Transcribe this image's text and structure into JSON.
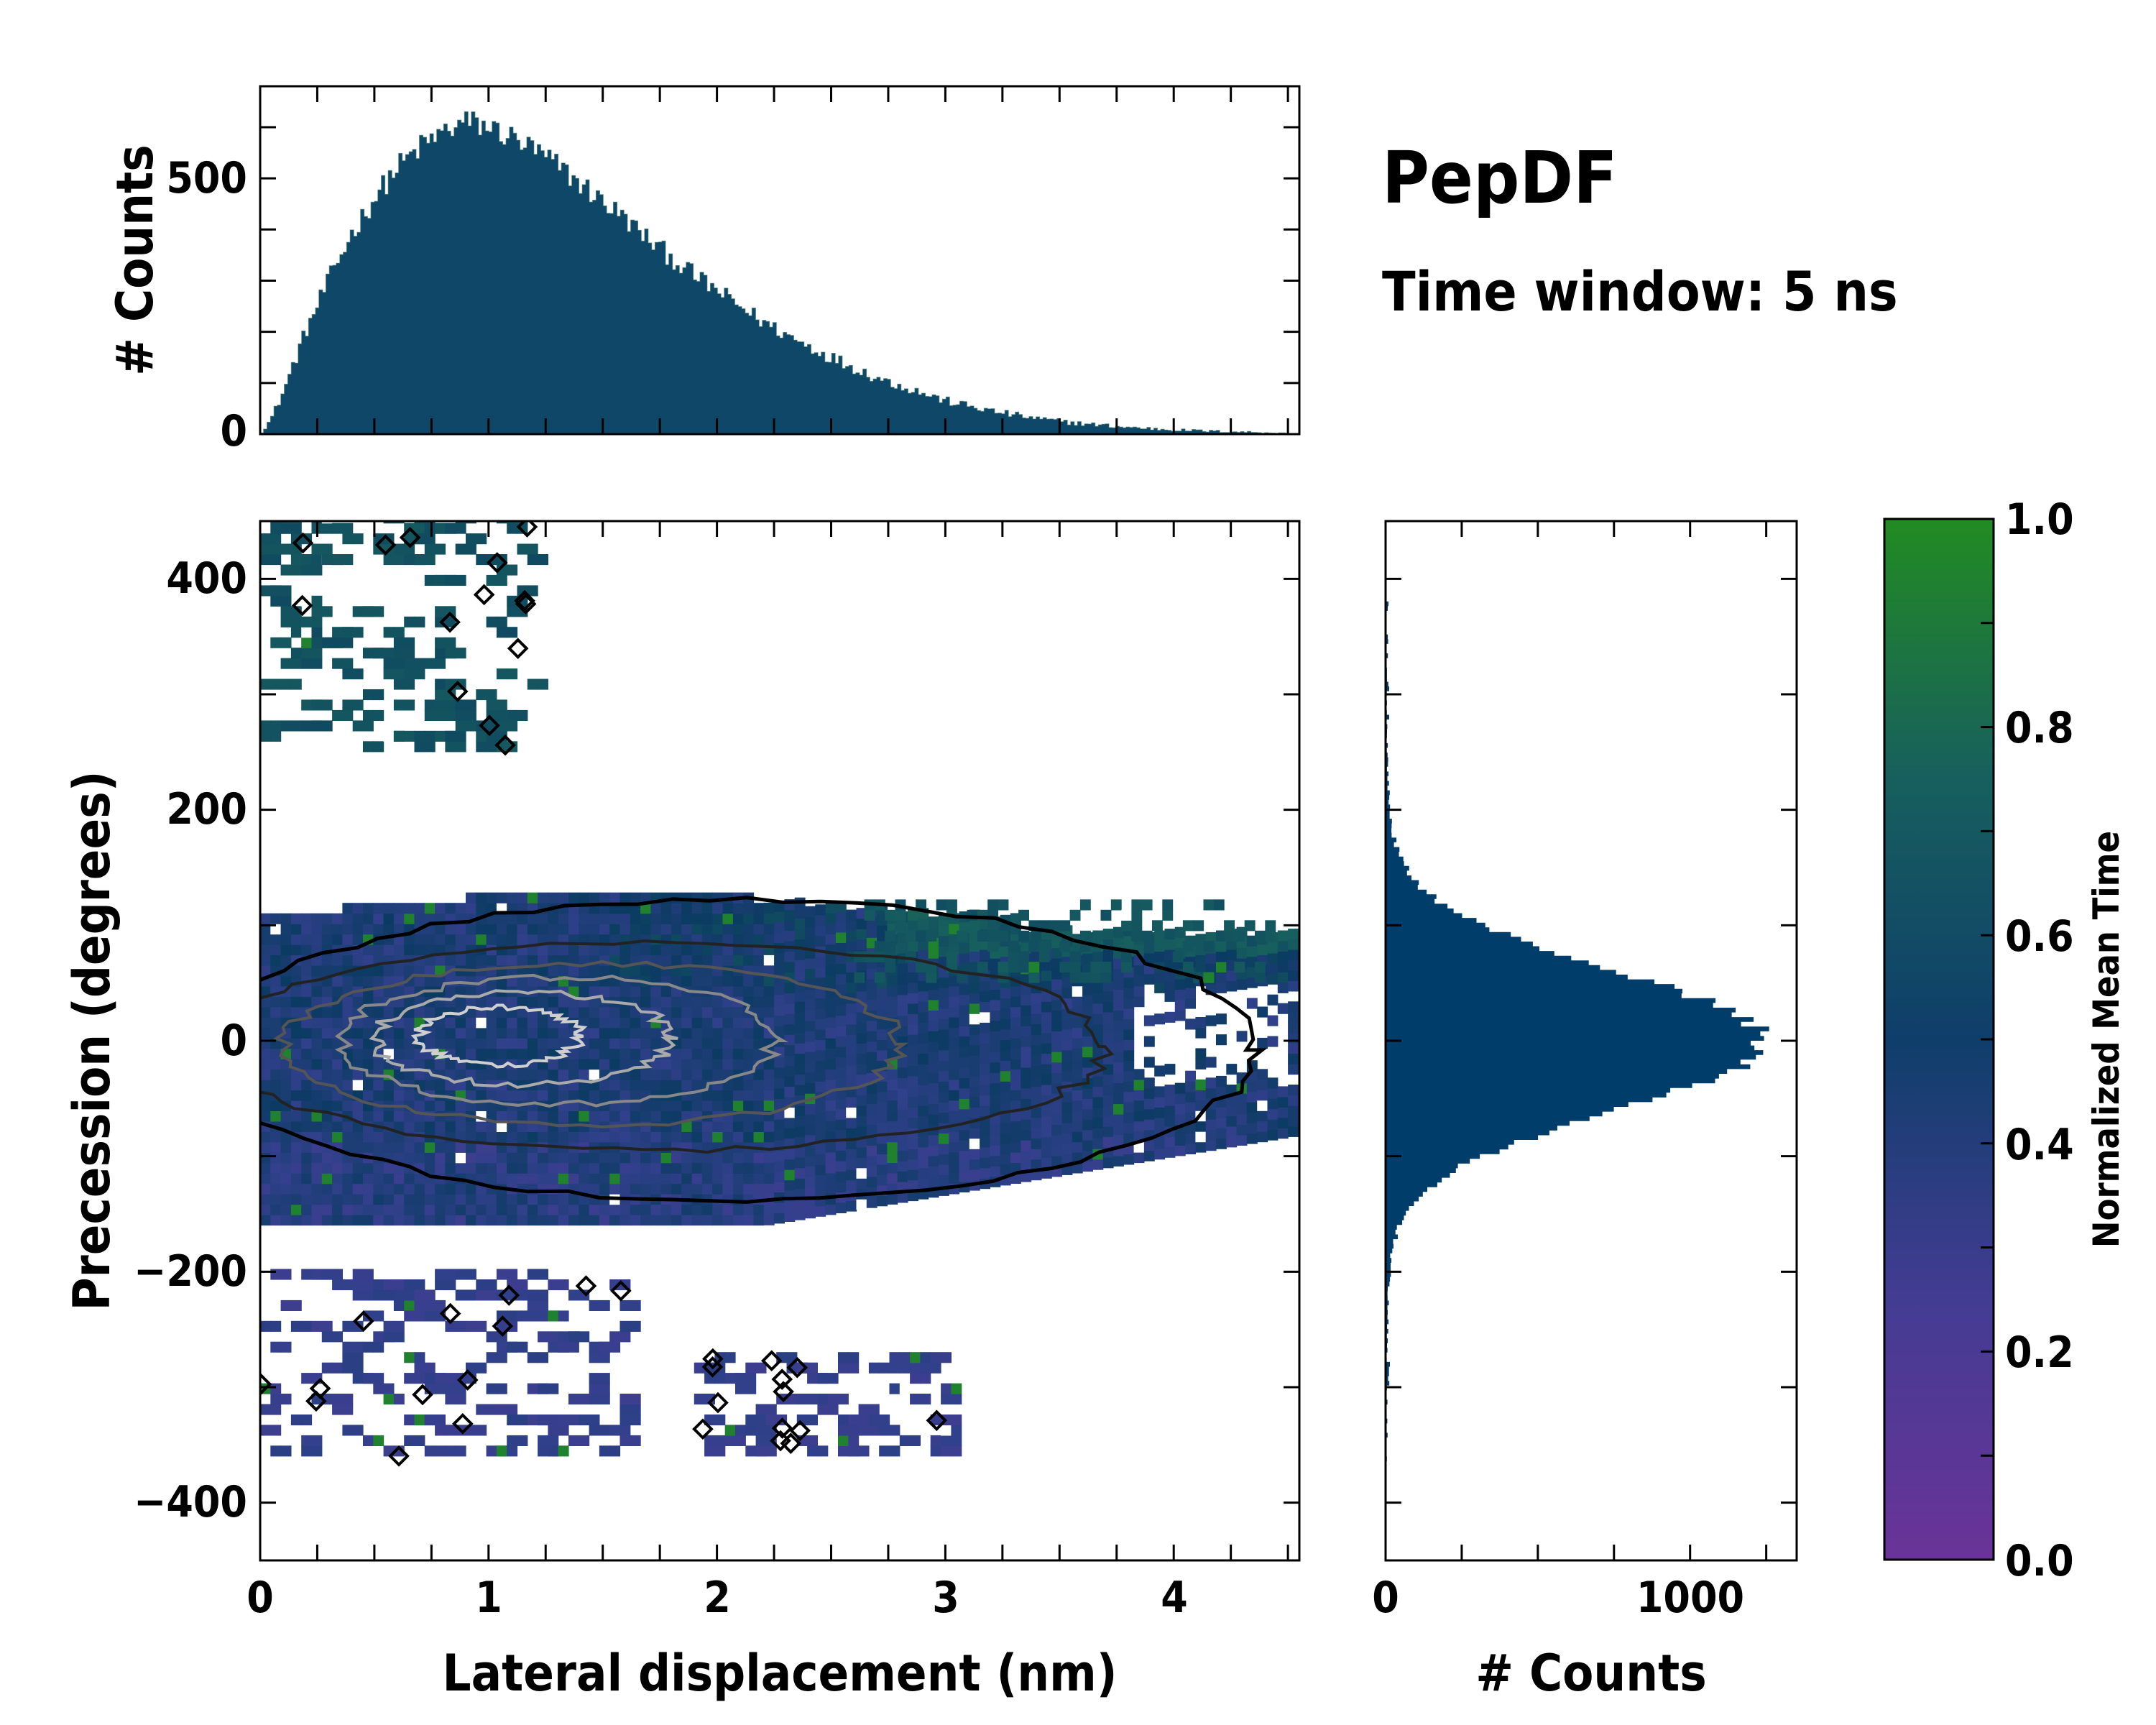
{
  "title": "PepDF",
  "subtitle": "Time window: 5 ns",
  "colors": {
    "low": "#6a3399",
    "mid_low": "#32408c",
    "mid": "#0b3b62",
    "mid_high": "#175f5e",
    "high": "#228b22",
    "hist_top": "#0f4768",
    "hist_right": "#003d6b",
    "contour_outer": "#000000",
    "contour_inner": "#aaaaaa"
  },
  "chart_data": [
    {
      "id": "joint",
      "type": "heatmap",
      "xlabel": "Lateral displacement (nm)",
      "ylabel": "Precession (degrees)",
      "xlim": [
        0,
        4.55
      ],
      "ylim": [
        -450,
        450
      ],
      "xticks": [
        "0",
        "1",
        "2",
        "3",
        "4"
      ],
      "yticks": [
        "400",
        "200",
        "0",
        "−200",
        "−400"
      ],
      "xtick_values": [
        0,
        1,
        2,
        3,
        4
      ],
      "ytick_values": [
        400,
        200,
        0,
        -200,
        -400
      ],
      "core_region": {
        "x_range": [
          0,
          4.5
        ],
        "y_range": [
          -180,
          150
        ],
        "density_peak": {
          "x": 0.9,
          "y": 0
        }
      },
      "outlier_clusters": [
        {
          "x_range": [
            0,
            1.2
          ],
          "y_range": [
            250,
            450
          ],
          "mean_time": 0.65
        },
        {
          "x_range": [
            0,
            1.6
          ],
          "y_range": [
            -360,
            -200
          ],
          "mean_time": 0.25
        },
        {
          "x_range": [
            1.9,
            3.0
          ],
          "y_range": [
            -360,
            -270
          ],
          "mean_time": 0.25
        }
      ]
    },
    {
      "id": "marginal-x",
      "type": "bar",
      "ylabel": "# Counts",
      "xlim": [
        0,
        4.55
      ],
      "ylim": [
        0,
        680
      ],
      "yticks": [
        "0",
        "500"
      ],
      "ytick_values": [
        0,
        500
      ],
      "x": [
        0.05,
        0.1,
        0.2,
        0.3,
        0.4,
        0.5,
        0.6,
        0.7,
        0.8,
        0.9,
        1.0,
        1.1,
        1.2,
        1.3,
        1.4,
        1.5,
        1.6,
        1.7,
        1.8,
        1.9,
        2.0,
        2.1,
        2.2,
        2.3,
        2.4,
        2.5,
        2.6,
        2.7,
        2.8,
        2.9,
        3.0,
        3.2,
        3.4,
        3.6,
        3.8,
        4.0,
        4.2,
        4.4,
        4.55
      ],
      "values": [
        30,
        80,
        200,
        300,
        390,
        460,
        520,
        560,
        590,
        610,
        600,
        580,
        555,
        525,
        490,
        455,
        420,
        380,
        345,
        310,
        280,
        250,
        220,
        195,
        172,
        150,
        130,
        110,
        95,
        80,
        65,
        45,
        30,
        20,
        13,
        8,
        5,
        3,
        0
      ]
    },
    {
      "id": "marginal-y",
      "type": "bar",
      "xlabel": "# Counts",
      "xlim": [
        0,
        1350
      ],
      "ylim": [
        -450,
        450
      ],
      "xticks": [
        "0",
        "1000"
      ],
      "xtick_values": [
        0,
        1000
      ],
      "peak": {
        "y": 0,
        "count": 1220
      },
      "sigma": 60
    },
    {
      "id": "colorbar",
      "type": "colorbar",
      "label": "Normalized Mean Time",
      "ylim": [
        0,
        1
      ],
      "ticks": [
        "0.0",
        "0.2",
        "0.4",
        "0.6",
        "0.8",
        "1.0"
      ],
      "tick_values": [
        0,
        0.2,
        0.4,
        0.6,
        0.8,
        1.0
      ]
    }
  ]
}
